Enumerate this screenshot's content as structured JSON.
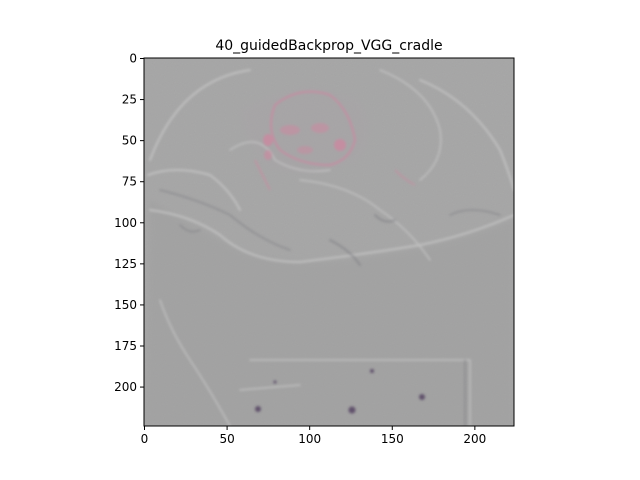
{
  "chart_data": {
    "type": "heatmap",
    "title": "40_guidedBackprop_VGG_cradle",
    "xlabel": "",
    "ylabel": "",
    "image_size": [
      224,
      224
    ],
    "xlim": [
      0,
      224
    ],
    "ylim": [
      224,
      0
    ],
    "x_ticks": [
      0,
      50,
      100,
      150,
      200
    ],
    "y_ticks": [
      0,
      25,
      50,
      75,
      100,
      125,
      150,
      175,
      200
    ],
    "grid": false,
    "legend": "none",
    "colors": {
      "background": "#a5a5a5",
      "outline_light": "#c5c5c5",
      "outline_dark": "#7a7a80",
      "highlight_pink": "#c98aa0",
      "highlight_dark": "#5a4a66"
    },
    "content": "gradient saliency map of an infant in a cradle, gray background with faint edge outlines"
  }
}
